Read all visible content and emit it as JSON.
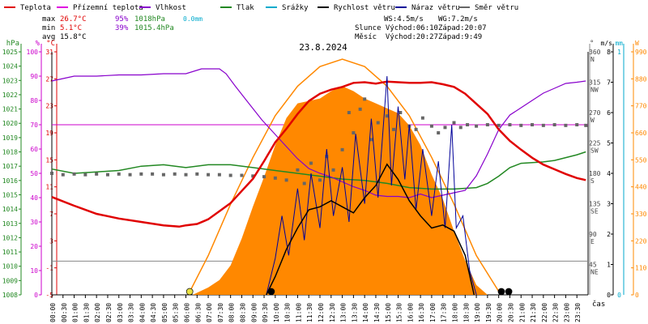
{
  "chart_data": {
    "type": "line",
    "title": "23.8.2024",
    "x_start_hour": 0,
    "x_end_hour": 24,
    "x_tick_labels": [
      "00:00",
      "00:30",
      "01:00",
      "01:30",
      "02:00",
      "02:30",
      "03:00",
      "03:30",
      "04:00",
      "04:30",
      "05:00",
      "05:30",
      "06:00",
      "06:30",
      "07:00",
      "07:30",
      "08:00",
      "08:30",
      "09:00",
      "09:30",
      "10:00",
      "10:30",
      "11:00",
      "11:30",
      "12:00",
      "12:30",
      "13:00",
      "13:30",
      "14:00",
      "14:30",
      "15:00",
      "15:30",
      "16:00",
      "16:30",
      "17:00",
      "17:30",
      "18:00",
      "18:30",
      "19:00",
      "19:30",
      "20:00",
      "20:30",
      "21:00",
      "21:30",
      "22:00",
      "22:30",
      "23:00",
      "23:30"
    ],
    "x_axis_label": "čas",
    "legend": [
      {
        "key": "temp",
        "label": "Teplota",
        "color": "#e00000"
      },
      {
        "key": "dew",
        "label": "Přízemní teplota",
        "color": "#e000e0"
      },
      {
        "key": "hum",
        "label": "Vlhkost",
        "color": "#8800cc"
      },
      {
        "key": "press",
        "label": "Tlak",
        "color": "#228822"
      },
      {
        "key": "rain",
        "label": "Srážky",
        "color": "#00aacc"
      },
      {
        "key": "wind",
        "label": "Rychlost větru",
        "color": "#000000"
      },
      {
        "key": "gust",
        "label": "Náraz větru",
        "color": "#000099"
      },
      {
        "key": "dir",
        "label": "Směr větru",
        "color": "#666666"
      }
    ],
    "stats": {
      "max_label": "max",
      "max_temp": "26.7°C",
      "max_hum": "95%",
      "max_press": "1018hPa",
      "rain_total": "0.0mm",
      "min_label": "min",
      "min_temp": "5.1°C",
      "min_hum": "39%",
      "min_press": "1015.4hPa",
      "avg_label": "avg",
      "avg_temp": "15.8°C",
      "ws": "WS:4.5m/s",
      "wg": "WG:7.2m/s",
      "sun_rise": "Slunce Východ:06:10",
      "sun_set": "Západ:20:07",
      "moon_rise": "Měsíc  Východ:20:27",
      "moon_set": "Západ:9:49"
    },
    "axes": {
      "press": {
        "unit": "hPa",
        "min": 1008,
        "max": 1025,
        "ticks": [
          1025,
          1024,
          1023,
          1022,
          1021,
          1020,
          1019,
          1018,
          1017,
          1016,
          1015,
          1014,
          1013,
          1012,
          1011,
          1010,
          1009,
          1008
        ]
      },
      "hum": {
        "unit": "%",
        "min": 0,
        "max": 100,
        "ticks": [
          100,
          90,
          80,
          70,
          60,
          50,
          40,
          30,
          20,
          10,
          0
        ]
      },
      "temp": {
        "unit": "°C",
        "min": -5,
        "max": 31,
        "ticks": [
          31,
          27,
          23,
          19,
          15,
          11,
          7,
          3,
          -1,
          -5
        ]
      },
      "dir": {
        "unit": "°",
        "min": 0,
        "max": 360,
        "ticks": [
          [
            360,
            "N"
          ],
          [
            315,
            "NW"
          ],
          [
            270,
            "W"
          ],
          [
            225,
            "SW"
          ],
          [
            180,
            "S"
          ],
          [
            135,
            "SE"
          ],
          [
            90,
            "E"
          ],
          [
            45,
            "NE"
          ]
        ]
      },
      "wind": {
        "unit": "m/s",
        "min": 0,
        "max": 8,
        "ticks": [
          8,
          7,
          6,
          5,
          4,
          3,
          2,
          1,
          0
        ]
      },
      "rain": {
        "unit": "mm",
        "min": 0,
        "max": 1,
        "ticks": [
          1,
          0
        ]
      },
      "solar": {
        "unit": "W",
        "min": 0,
        "max": 990,
        "ticks": [
          990,
          880,
          770,
          660,
          550,
          440,
          330,
          220,
          110,
          0
        ]
      }
    },
    "reference_lines": {
      "hum_70": 70,
      "temp_0": 0
    },
    "series": {
      "temp": [
        [
          0,
          9.5
        ],
        [
          1,
          8.2
        ],
        [
          2,
          7
        ],
        [
          3,
          6.3
        ],
        [
          4,
          5.8
        ],
        [
          5,
          5.3
        ],
        [
          5.7,
          5.1
        ],
        [
          6,
          5.3
        ],
        [
          6.5,
          5.5
        ],
        [
          7,
          6.2
        ],
        [
          7.5,
          7.4
        ],
        [
          8,
          8.6
        ],
        [
          8.5,
          10.4
        ],
        [
          9,
          12.2
        ],
        [
          9.5,
          14.8
        ],
        [
          10,
          17.6
        ],
        [
          10.5,
          19.6
        ],
        [
          11,
          21.8
        ],
        [
          11.5,
          23.7
        ],
        [
          12,
          24.8
        ],
        [
          12.5,
          25.4
        ],
        [
          13,
          25.8
        ],
        [
          13.5,
          26.4
        ],
        [
          14,
          26.5
        ],
        [
          14.5,
          26.3
        ],
        [
          15,
          26.6
        ],
        [
          15.5,
          26.5
        ],
        [
          16,
          26.4
        ],
        [
          16.5,
          26.4
        ],
        [
          17,
          26.5
        ],
        [
          17.5,
          26.2
        ],
        [
          18,
          25.8
        ],
        [
          18.5,
          24.8
        ],
        [
          19,
          23.3
        ],
        [
          19.5,
          21.8
        ],
        [
          20,
          19.5
        ],
        [
          20.5,
          17.8
        ],
        [
          21,
          16.5
        ],
        [
          21.5,
          15.3
        ],
        [
          22,
          14.3
        ],
        [
          22.5,
          13.6
        ],
        [
          23,
          12.9
        ],
        [
          23.5,
          12.3
        ],
        [
          23.9,
          12
        ]
      ],
      "hum": [
        [
          0,
          88
        ],
        [
          0.5,
          89
        ],
        [
          1,
          90
        ],
        [
          2,
          90
        ],
        [
          3,
          90.5
        ],
        [
          4,
          90.5
        ],
        [
          5,
          91
        ],
        [
          6,
          91
        ],
        [
          6.7,
          93
        ],
        [
          7.5,
          93
        ],
        [
          7.8,
          91
        ],
        [
          8.2,
          86
        ],
        [
          8.8,
          79
        ],
        [
          9.4,
          72
        ],
        [
          10,
          66
        ],
        [
          10.5,
          61
        ],
        [
          11,
          56
        ],
        [
          11.5,
          52
        ],
        [
          12,
          50
        ],
        [
          12.5,
          48.5
        ],
        [
          13,
          46.5
        ],
        [
          13.5,
          44.5
        ],
        [
          14,
          43
        ],
        [
          14.5,
          41
        ],
        [
          15,
          40.5
        ],
        [
          15.5,
          40.5
        ],
        [
          16,
          40
        ],
        [
          16.5,
          41.5
        ],
        [
          17,
          40
        ],
        [
          17.5,
          41
        ],
        [
          18,
          42
        ],
        [
          18.5,
          43
        ],
        [
          19,
          49
        ],
        [
          19.5,
          58
        ],
        [
          20,
          68
        ],
        [
          20.5,
          74
        ],
        [
          21,
          77
        ],
        [
          21.5,
          80
        ],
        [
          22,
          83
        ],
        [
          22.5,
          85
        ],
        [
          23,
          87
        ],
        [
          23.5,
          87.5
        ],
        [
          23.9,
          88
        ]
      ],
      "press": [
        [
          0,
          1016.8
        ],
        [
          1,
          1016.5
        ],
        [
          2,
          1016.6
        ],
        [
          3,
          1016.7
        ],
        [
          4,
          1017
        ],
        [
          5,
          1017.1
        ],
        [
          6,
          1016.9
        ],
        [
          7,
          1017.1
        ],
        [
          8,
          1017.1
        ],
        [
          9,
          1016.9
        ],
        [
          10,
          1016.7
        ],
        [
          11,
          1016.5
        ],
        [
          12,
          1016.3
        ],
        [
          13,
          1016.1
        ],
        [
          14,
          1016
        ],
        [
          15,
          1015.8
        ],
        [
          16,
          1015.5
        ],
        [
          17,
          1015.4
        ],
        [
          18,
          1015.4
        ],
        [
          19,
          1015.5
        ],
        [
          19.5,
          1015.8
        ],
        [
          20,
          1016.3
        ],
        [
          20.5,
          1016.9
        ],
        [
          21,
          1017.2
        ],
        [
          22,
          1017.3
        ],
        [
          22.5,
          1017.4
        ],
        [
          23,
          1017.6
        ],
        [
          23.5,
          1017.8
        ],
        [
          23.9,
          1018
        ]
      ],
      "wind": [
        [
          9.6,
          0
        ],
        [
          10,
          0.6
        ],
        [
          10.5,
          1.5
        ],
        [
          11,
          2.2
        ],
        [
          11.5,
          2.8
        ],
        [
          12,
          2.9
        ],
        [
          12.5,
          3.1
        ],
        [
          13,
          2.9
        ],
        [
          13.5,
          2.7
        ],
        [
          14,
          3.2
        ],
        [
          14.5,
          3.6
        ],
        [
          15,
          4.3
        ],
        [
          15.5,
          3.8
        ],
        [
          16,
          3.1
        ],
        [
          16.5,
          2.6
        ],
        [
          17,
          2.2
        ],
        [
          17.5,
          2.3
        ],
        [
          18,
          2.1
        ],
        [
          18.5,
          1.3
        ],
        [
          18.9,
          0
        ]
      ],
      "gust": [
        [
          9.6,
          0
        ],
        [
          10,
          1.2
        ],
        [
          10.3,
          2.6
        ],
        [
          10.6,
          1.3
        ],
        [
          11,
          3.5
        ],
        [
          11.3,
          1.8
        ],
        [
          11.6,
          4.0
        ],
        [
          12,
          2.2
        ],
        [
          12.3,
          4.8
        ],
        [
          12.6,
          2.6
        ],
        [
          13,
          4.2
        ],
        [
          13.3,
          2.4
        ],
        [
          13.6,
          5.3
        ],
        [
          14,
          3.0
        ],
        [
          14.3,
          5.8
        ],
        [
          14.6,
          3.2
        ],
        [
          15,
          7.2
        ],
        [
          15.2,
          3.6
        ],
        [
          15.5,
          6.2
        ],
        [
          15.8,
          3.8
        ],
        [
          16,
          5.6
        ],
        [
          16.3,
          2.8
        ],
        [
          16.6,
          4.8
        ],
        [
          17,
          2.6
        ],
        [
          17.3,
          4.4
        ],
        [
          17.6,
          2.2
        ],
        [
          17.9,
          5.6
        ],
        [
          18.1,
          2.2
        ],
        [
          18.4,
          2.6
        ],
        [
          18.7,
          0.8
        ],
        [
          19,
          0
        ]
      ],
      "dir": [
        [
          0,
          180
        ],
        [
          0.5,
          178
        ],
        [
          1,
          179
        ],
        [
          1.5,
          178
        ],
        [
          2,
          179
        ],
        [
          2.5,
          178
        ],
        [
          3,
          179
        ],
        [
          3.5,
          178
        ],
        [
          4,
          179
        ],
        [
          4.5,
          179
        ],
        [
          5,
          178
        ],
        [
          5.5,
          179
        ],
        [
          6,
          178
        ],
        [
          6.5,
          179
        ],
        [
          7,
          178
        ],
        [
          7.5,
          178
        ],
        [
          8,
          177
        ],
        [
          8.5,
          177
        ],
        [
          9,
          176
        ],
        [
          9.5,
          175
        ],
        [
          10,
          173
        ],
        [
          10.5,
          170
        ],
        [
          11,
          185
        ],
        [
          11.3,
          165
        ],
        [
          11.6,
          195
        ],
        [
          12,
          170
        ],
        [
          12.3,
          205
        ],
        [
          12.6,
          185
        ],
        [
          13,
          215
        ],
        [
          13.3,
          270
        ],
        [
          13.5,
          240
        ],
        [
          13.8,
          275
        ],
        [
          14,
          290
        ],
        [
          14.3,
          230
        ],
        [
          14.6,
          255
        ],
        [
          15,
          265
        ],
        [
          15.3,
          245
        ],
        [
          15.6,
          270
        ],
        [
          16,
          250
        ],
        [
          16.3,
          245
        ],
        [
          16.6,
          262
        ],
        [
          17,
          250
        ],
        [
          17.3,
          240
        ],
        [
          17.6,
          248
        ],
        [
          18,
          255
        ],
        [
          18.3,
          248
        ],
        [
          18.6,
          252
        ],
        [
          19,
          250
        ],
        [
          19.5,
          252
        ],
        [
          20,
          251
        ],
        [
          20.5,
          252
        ],
        [
          21,
          251
        ],
        [
          21.5,
          252
        ],
        [
          22,
          251
        ],
        [
          22.5,
          252
        ],
        [
          23,
          251
        ],
        [
          23.5,
          252
        ],
        [
          23.9,
          251
        ]
      ],
      "solar_curve": [
        [
          6.1,
          0
        ],
        [
          7,
          160
        ],
        [
          8,
          370
        ],
        [
          9,
          560
        ],
        [
          10,
          730
        ],
        [
          11,
          850
        ],
        [
          12,
          930
        ],
        [
          13,
          960
        ],
        [
          14,
          930
        ],
        [
          15,
          850
        ],
        [
          16,
          730
        ],
        [
          17,
          560
        ],
        [
          18,
          370
        ],
        [
          19,
          160
        ],
        [
          20.1,
          0
        ]
      ],
      "solar": [
        [
          6.3,
          0
        ],
        [
          7,
          30
        ],
        [
          7.5,
          60
        ],
        [
          8,
          120
        ],
        [
          8.5,
          230
        ],
        [
          9,
          360
        ],
        [
          9.5,
          480
        ],
        [
          10,
          610
        ],
        [
          10.5,
          720
        ],
        [
          11,
          780
        ],
        [
          11.5,
          790
        ],
        [
          12,
          800
        ],
        [
          12.5,
          830
        ],
        [
          13,
          850
        ],
        [
          13.5,
          830
        ],
        [
          14,
          800
        ],
        [
          14.5,
          780
        ],
        [
          15,
          760
        ],
        [
          15.5,
          740
        ],
        [
          16,
          690
        ],
        [
          16.5,
          610
        ],
        [
          17,
          490
        ],
        [
          17.5,
          390
        ],
        [
          18,
          260
        ],
        [
          18.5,
          140
        ],
        [
          19,
          40
        ],
        [
          19.5,
          0
        ]
      ]
    },
    "markers": [
      {
        "label": "sunrise",
        "hour": 6.17,
        "color": "#e8e040"
      },
      {
        "label": "moonset",
        "hour": 9.82,
        "color": "#000000"
      },
      {
        "label": "sunset",
        "hour": 20.12,
        "color": "#000000"
      },
      {
        "label": "moonrise",
        "hour": 20.45,
        "color": "#000000"
      }
    ]
  }
}
